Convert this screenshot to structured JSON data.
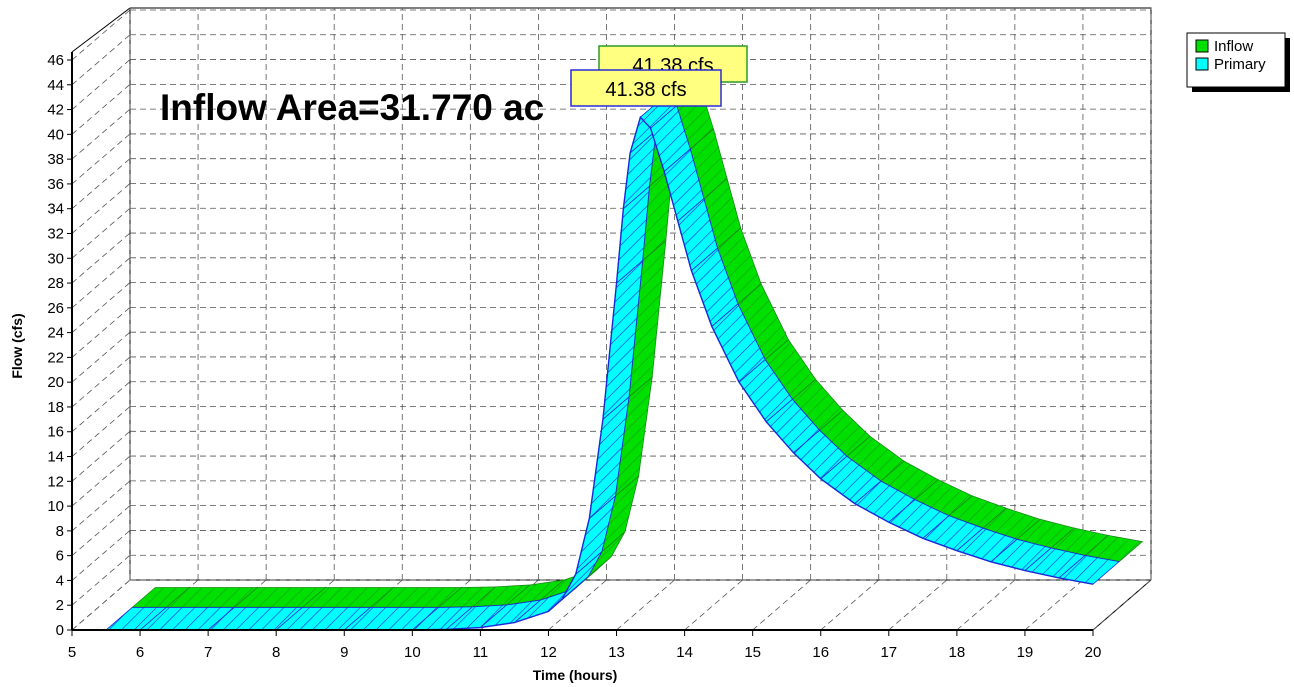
{
  "chart_data": {
    "type": "area",
    "xlabel": "Time  (hours)",
    "ylabel": "Flow  (cfs)",
    "xlim": [
      5,
      20
    ],
    "ylim": [
      0,
      46
    ],
    "x_ticks": [
      "5",
      "6",
      "7",
      "8",
      "9",
      "10",
      "11",
      "12",
      "13",
      "14",
      "15",
      "16",
      "17",
      "18",
      "19",
      "20"
    ],
    "y_ticks": [
      "0",
      "2",
      "4",
      "6",
      "8",
      "10",
      "12",
      "14",
      "16",
      "18",
      "20",
      "22",
      "24",
      "26",
      "28",
      "30",
      "32",
      "34",
      "36",
      "38",
      "40",
      "42",
      "44",
      "46"
    ],
    "annotation": "Inflow Area=31.770 ac",
    "grid": true,
    "legend_position": "top-right",
    "style": "3d-ribbon",
    "series": [
      {
        "name": "Inflow",
        "color": "#00e000",
        "peak_label": "41.38 cfs",
        "x": [
          5.5,
          6,
          7,
          8,
          9,
          10,
          10.5,
          11,
          11.5,
          12,
          12.2,
          12.4,
          12.6,
          12.8,
          13,
          13.1,
          13.2,
          13.35,
          13.5,
          13.7,
          13.9,
          14.1,
          14.4,
          14.8,
          15.2,
          15.6,
          16,
          16.5,
          17,
          17.5,
          18,
          18.5,
          19,
          19.5,
          20
        ],
        "values": [
          0,
          0,
          0,
          0,
          0,
          0,
          0.05,
          0.2,
          0.6,
          1.5,
          2.5,
          4.5,
          9,
          17,
          28,
          34,
          38.5,
          41.38,
          40.5,
          37,
          33,
          29,
          24.5,
          20,
          16.8,
          14.3,
          12.2,
          10.2,
          8.7,
          7.4,
          6.4,
          5.5,
          4.8,
          4.2,
          3.7
        ]
      },
      {
        "name": "Primary",
        "color": "#00ffff",
        "peak_label": "41.38 cfs",
        "x": [
          5.5,
          6,
          7,
          8,
          9,
          10,
          10.5,
          11,
          11.5,
          12,
          12.2,
          12.4,
          12.6,
          12.8,
          13,
          13.1,
          13.2,
          13.35,
          13.5,
          13.7,
          13.9,
          14.1,
          14.4,
          14.8,
          15.2,
          15.6,
          16,
          16.5,
          17,
          17.5,
          18,
          18.5,
          19,
          19.5,
          20
        ],
        "values": [
          0,
          0,
          0,
          0,
          0,
          0,
          0.05,
          0.2,
          0.6,
          1.5,
          2.5,
          4.5,
          9,
          17,
          28,
          34,
          38.5,
          41.38,
          40.5,
          37,
          33,
          29,
          24.5,
          20,
          16.8,
          14.3,
          12.2,
          10.2,
          8.7,
          7.4,
          6.4,
          5.5,
          4.8,
          4.2,
          3.7
        ]
      }
    ]
  }
}
